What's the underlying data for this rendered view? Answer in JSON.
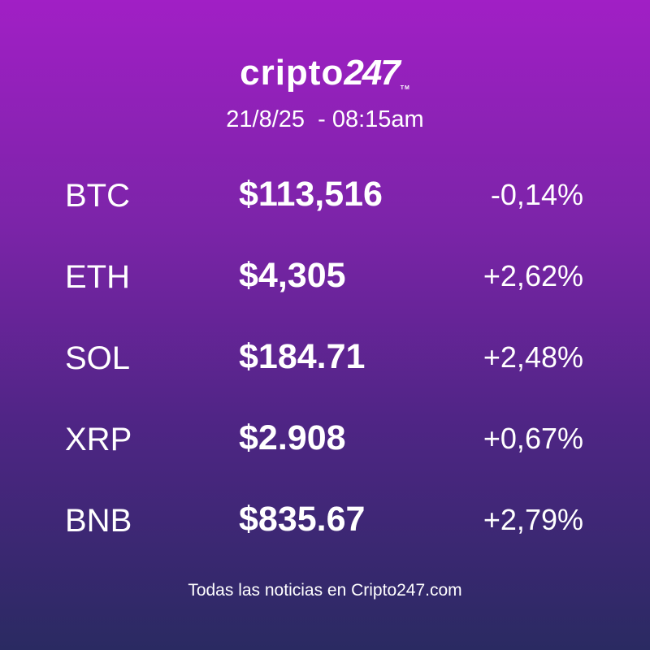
{
  "header": {
    "logo": {
      "text": "cripto",
      "number": "247",
      "mark": "TM"
    },
    "date": "21/8/25  - 08:15am"
  },
  "rows": [
    {
      "symbol": "BTC",
      "price": "$113,516",
      "change": "-0,14%"
    },
    {
      "symbol": "ETH",
      "price": "$4,305",
      "change": "+2,62%"
    },
    {
      "symbol": "SOL",
      "price": "$184.71",
      "change": "+2,48%"
    },
    {
      "symbol": "XRP",
      "price": "$2.908",
      "change": "+0,67%"
    },
    {
      "symbol": "BNB",
      "price": "$835.67",
      "change": "+2,79%"
    }
  ],
  "footer": "Todas las noticias en Cripto247.com"
}
